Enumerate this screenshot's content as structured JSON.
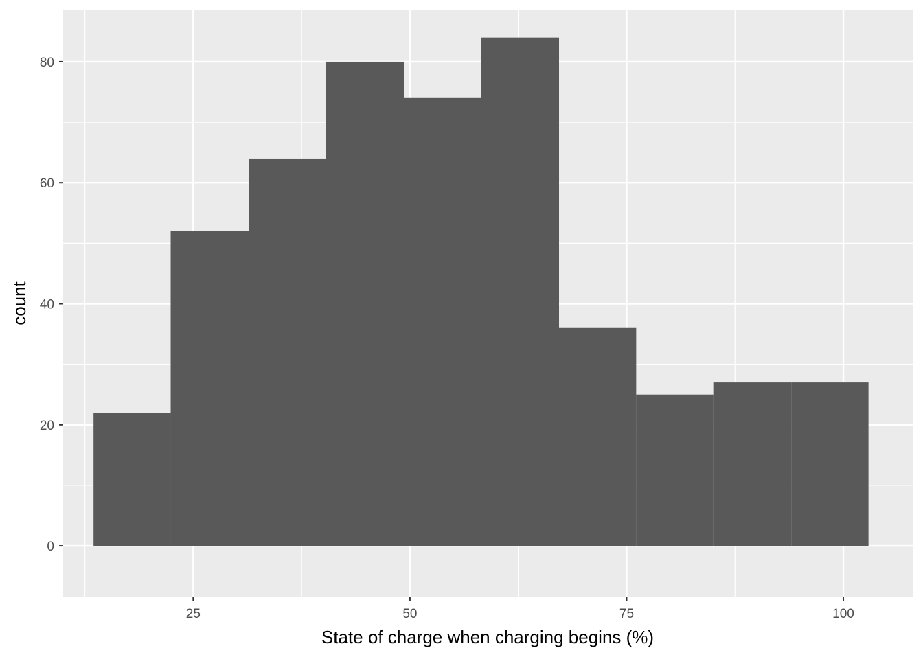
{
  "chart_data": {
    "type": "histogram",
    "title": "",
    "xlabel": "State of charge when charging begins (%)",
    "ylabel": "count",
    "xlim": [
      10,
      108
    ],
    "ylim": [
      -8.5,
      88.5
    ],
    "x_ticks": [
      25,
      50,
      75,
      100
    ],
    "y_ticks": [
      0,
      20,
      40,
      60,
      80
    ],
    "grid": true,
    "legend": "none",
    "bins": [
      {
        "x_start": 13.5,
        "x_end": 22.4,
        "count": 22
      },
      {
        "x_start": 22.4,
        "x_end": 31.4,
        "count": 52
      },
      {
        "x_start": 31.4,
        "x_end": 40.3,
        "count": 64
      },
      {
        "x_start": 40.3,
        "x_end": 49.3,
        "count": 80
      },
      {
        "x_start": 49.3,
        "x_end": 58.2,
        "count": 74
      },
      {
        "x_start": 58.2,
        "x_end": 67.2,
        "count": 84
      },
      {
        "x_start": 67.2,
        "x_end": 76.1,
        "count": 36
      },
      {
        "x_start": 76.1,
        "x_end": 85.0,
        "count": 25
      },
      {
        "x_start": 85.0,
        "x_end": 94.0,
        "count": 27
      },
      {
        "x_start": 94.0,
        "x_end": 102.9,
        "count": 27
      }
    ],
    "colors": {
      "panel": "#ebebeb",
      "grid_major": "#ffffff",
      "bar": "#595959"
    }
  }
}
